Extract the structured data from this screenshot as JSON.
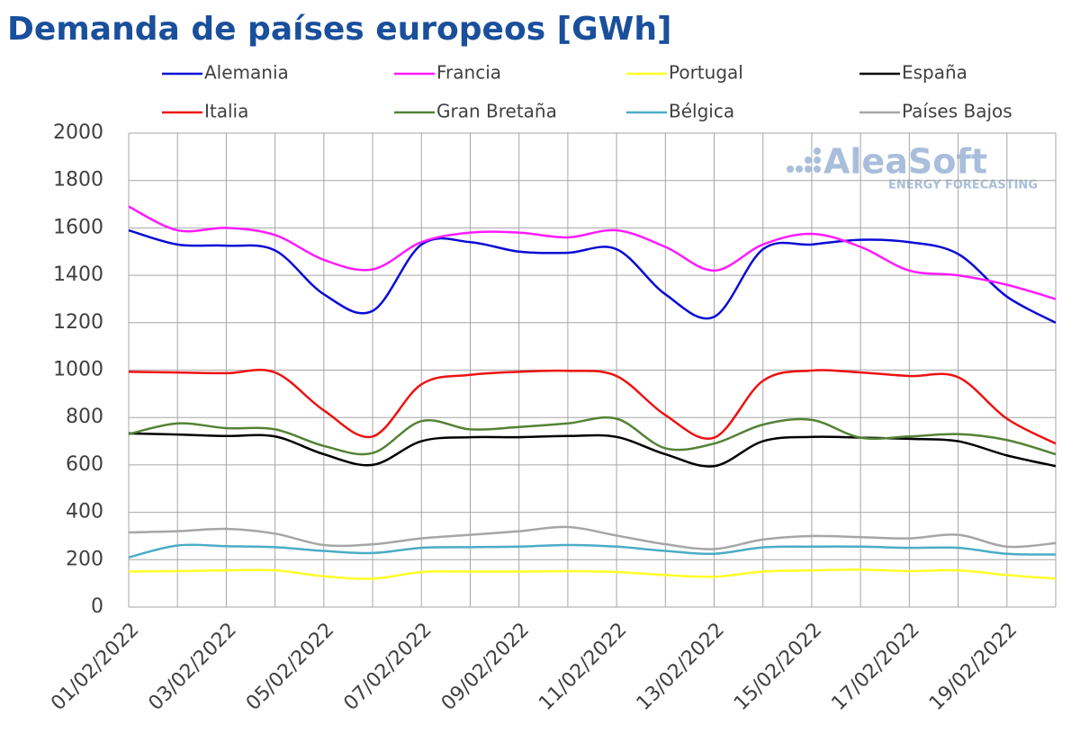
{
  "chart_data": {
    "type": "line",
    "title": "Demanda de países europeos [GWh]",
    "watermark": {
      "name": "AleaSoft",
      "tagline": "ENERGY FORECASTING"
    },
    "categories": [
      "01/02/2022",
      null,
      "03/02/2022",
      null,
      "05/02/2022",
      null,
      "07/02/2022",
      null,
      "09/02/2022",
      null,
      "11/02/2022",
      null,
      "13/02/2022",
      null,
      "15/02/2022",
      null,
      "17/02/2022",
      null,
      "19/02/2022",
      null
    ],
    "series": [
      {
        "name": "Alemania",
        "color": "#0a0ad6",
        "values": [
          1590,
          1530,
          1525,
          1505,
          1320,
          1250,
          1530,
          1540,
          1500,
          1495,
          1510,
          1320,
          1225,
          1510,
          1530,
          1550,
          1540,
          1490,
          1310,
          1200
        ]
      },
      {
        "name": "Francia",
        "color": "#ff1aff",
        "values": [
          1690,
          1590,
          1600,
          1570,
          1465,
          1425,
          1540,
          1580,
          1580,
          1560,
          1590,
          1520,
          1420,
          1530,
          1575,
          1520,
          1420,
          1400,
          1360,
          1300
        ]
      },
      {
        "name": "Portugal",
        "color": "#ffff26",
        "values": [
          150,
          152,
          155,
          155,
          130,
          120,
          148,
          150,
          150,
          152,
          148,
          135,
          128,
          150,
          155,
          158,
          152,
          155,
          135,
          120
        ]
      },
      {
        "name": "España",
        "color": "#000000",
        "values": [
          733,
          728,
          722,
          720,
          645,
          600,
          700,
          717,
          717,
          722,
          718,
          645,
          595,
          700,
          718,
          715,
          710,
          700,
          640,
          595
        ]
      },
      {
        "name": "Italia",
        "color": "#ee1111",
        "values": [
          993,
          990,
          987,
          990,
          830,
          720,
          940,
          980,
          993,
          997,
          975,
          810,
          715,
          955,
          998,
          990,
          975,
          970,
          795,
          690
        ]
      },
      {
        "name": "Gran Bretaña",
        "color": "#548235",
        "values": [
          730,
          775,
          755,
          750,
          680,
          650,
          785,
          750,
          760,
          775,
          795,
          670,
          690,
          770,
          790,
          715,
          720,
          730,
          705,
          645
        ]
      },
      {
        "name": "Bélgica",
        "color": "#4bacc6",
        "values": [
          210,
          260,
          257,
          253,
          237,
          228,
          250,
          253,
          255,
          262,
          255,
          237,
          225,
          252,
          255,
          255,
          250,
          250,
          225,
          222
        ]
      },
      {
        "name": "Países Bajos",
        "color": "#a6a6a6",
        "values": [
          315,
          320,
          330,
          310,
          262,
          265,
          290,
          305,
          320,
          338,
          302,
          265,
          245,
          285,
          300,
          295,
          290,
          305,
          255,
          270
        ]
      }
    ],
    "ylim": [
      0,
      2000
    ],
    "yticks": [
      0,
      200,
      400,
      600,
      800,
      1000,
      1200,
      1400,
      1600,
      1800,
      2000
    ],
    "grid": true,
    "legend": "top"
  }
}
